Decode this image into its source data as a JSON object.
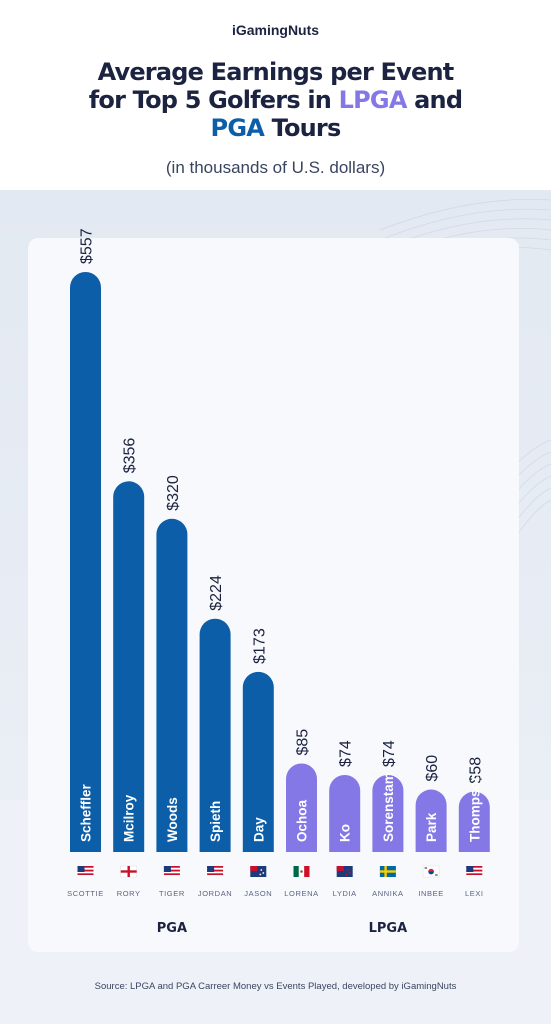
{
  "brand": "iGamingNuts",
  "title": {
    "line1": "Average Earnings per Event",
    "line2_pre": "for Top 5 Golfers in ",
    "line2_lpga": "LPGA",
    "line2_post": " and",
    "line3_pga": "PGA",
    "line3_post": " Tours"
  },
  "subtitle": "(in thousands of U.S. dollars)",
  "source": "Source: LPGA and PGA Carreer Money vs Events Played, developed by iGamingNuts",
  "colors": {
    "pga": "#0d5ea8",
    "lpga": "#8478e6",
    "text": "#1b2340"
  },
  "chart_data": {
    "type": "bar",
    "categories": [
      "Scheffler",
      "Mcilroy",
      "Woods",
      "Spieth",
      "Day",
      "Ochoa",
      "Ko",
      "Sorenstam",
      "Park",
      "Thompson"
    ],
    "first_names": [
      "SCOTTIE",
      "RORY",
      "TIGER",
      "JORDAN",
      "JASON",
      "LORENA",
      "LYDIA",
      "ANNIKA",
      "INBEE",
      "LEXI"
    ],
    "flags": [
      "us-flag",
      "northern-ireland-flag",
      "us-flag",
      "us-flag",
      "australia-flag",
      "mexico-flag",
      "new-zealand-flag",
      "sweden-flag",
      "south-korea-flag",
      "us-flag"
    ],
    "values": [
      557,
      356,
      320,
      224,
      173,
      85,
      74,
      74,
      60,
      58
    ],
    "value_labels": [
      "$557",
      "$356",
      "$320",
      "$224",
      "$173",
      "$85",
      "$74",
      "$74",
      "$60",
      "$58"
    ],
    "tours": [
      "PGA",
      "PGA",
      "PGA",
      "PGA",
      "PGA",
      "LPGA",
      "LPGA",
      "LPGA",
      "LPGA",
      "LPGA"
    ],
    "groups": [
      {
        "name": "PGA",
        "start": 0,
        "end": 4
      },
      {
        "name": "LPGA",
        "start": 5,
        "end": 9
      }
    ],
    "ylim": [
      0,
      557
    ]
  }
}
